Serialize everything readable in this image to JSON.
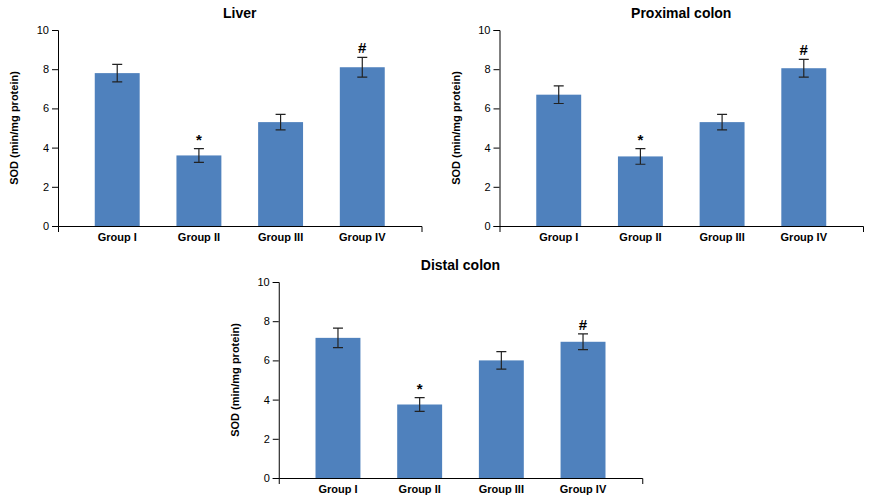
{
  "chart_data": [
    {
      "type": "bar",
      "title": "Liver",
      "categories": [
        "Group I",
        "Group II",
        "Group III",
        "Group IV"
      ],
      "values": [
        7.8,
        3.6,
        5.3,
        8.1
      ],
      "errors": [
        0.45,
        0.35,
        0.4,
        0.5
      ],
      "annotations": [
        null,
        "*",
        null,
        "#"
      ],
      "color": "#4f81bd",
      "ylabel": "SOD (min/mg protein)",
      "ylim": [
        0,
        10
      ],
      "yticks": [
        0,
        2,
        4,
        6,
        8,
        10
      ],
      "grid": false
    },
    {
      "type": "bar",
      "title": "Proximal colon",
      "categories": [
        "Group I",
        "Group II",
        "Group III",
        "Group IV"
      ],
      "values": [
        6.7,
        3.55,
        5.3,
        8.05
      ],
      "errors": [
        0.45,
        0.4,
        0.4,
        0.45
      ],
      "annotations": [
        null,
        "*",
        null,
        "#"
      ],
      "color": "#4f81bd",
      "ylabel": "SOD (min/mg protein)",
      "ylim": [
        0,
        10
      ],
      "yticks": [
        0,
        2,
        4,
        6,
        8,
        10
      ],
      "grid": false
    },
    {
      "type": "bar",
      "title": "Distal colon",
      "categories": [
        "Group I",
        "Group II",
        "Group III",
        "Group IV"
      ],
      "values": [
        7.15,
        3.75,
        6.0,
        6.95
      ],
      "errors": [
        0.5,
        0.35,
        0.45,
        0.4
      ],
      "annotations": [
        null,
        "*",
        null,
        "#"
      ],
      "color": "#4f81bd",
      "ylabel": "SOD (min/mg protein)",
      "ylim": [
        0,
        10
      ],
      "yticks": [
        0,
        2,
        4,
        6,
        8,
        10
      ],
      "grid": false
    }
  ]
}
